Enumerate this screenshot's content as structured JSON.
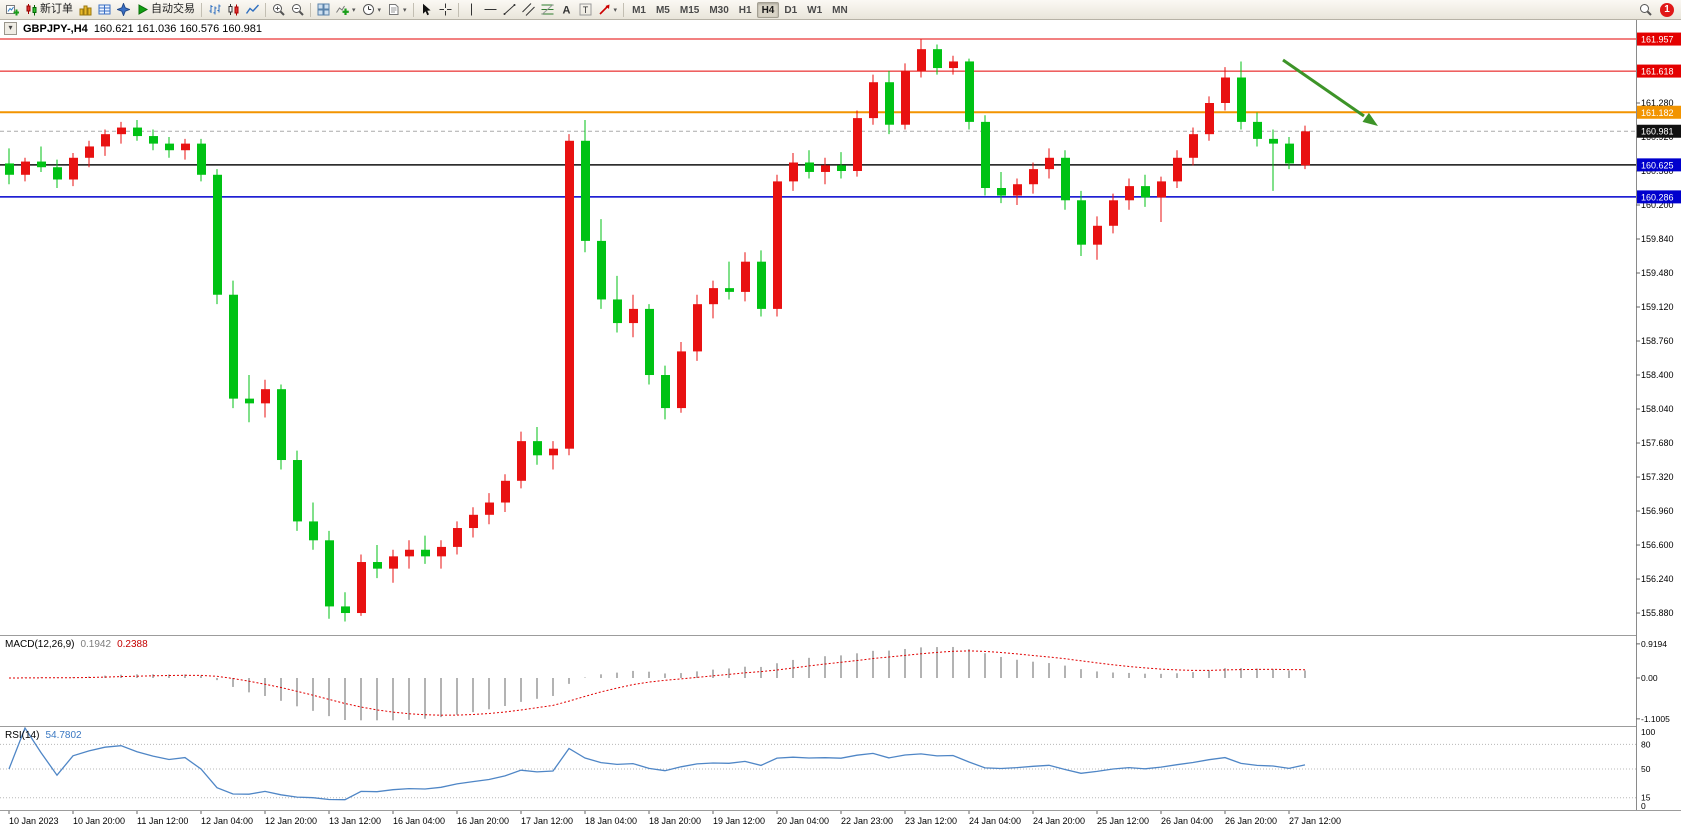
{
  "toolbar": {
    "groups": [
      {
        "name": "trade",
        "items": [
          {
            "name": "new-chart",
            "icon": "chart-plus"
          },
          {
            "name": "new-order",
            "icon": "order",
            "label": "新订单"
          },
          {
            "name": "market-watch",
            "icon": "market-watch"
          },
          {
            "name": "data-window",
            "icon": "data-window"
          },
          {
            "name": "navigator",
            "icon": "navigator"
          },
          {
            "name": "autotrading",
            "icon": "play",
            "label": "自动交易"
          }
        ]
      },
      {
        "name": "chart-types",
        "items": [
          {
            "name": "bar-chart",
            "icon": "bars"
          },
          {
            "name": "candle-chart",
            "icon": "candles"
          },
          {
            "name": "line-chart",
            "icon": "line"
          }
        ]
      },
      {
        "name": "zoom",
        "items": [
          {
            "name": "zoom-in",
            "icon": "zoom-in"
          },
          {
            "name": "zoom-out",
            "icon": "zoom-out"
          }
        ]
      },
      {
        "name": "windows",
        "items": [
          {
            "name": "tile-windows",
            "icon": "tile"
          },
          {
            "name": "indicators",
            "icon": "indicator-plus",
            "caret": true
          },
          {
            "name": "periods",
            "icon": "clock",
            "caret": true
          },
          {
            "name": "templates",
            "icon": "template",
            "caret": true
          }
        ]
      },
      {
        "name": "pointer",
        "items": [
          {
            "name": "cursor",
            "icon": "cursor"
          },
          {
            "name": "crosshair",
            "icon": "crosshair"
          }
        ]
      },
      {
        "name": "drawing",
        "items": [
          {
            "name": "vertical-line",
            "icon": "vline"
          },
          {
            "name": "horizontal-line",
            "icon": "hline"
          },
          {
            "name": "trendline",
            "icon": "tline"
          },
          {
            "name": "equidistant-channel",
            "icon": "channel"
          },
          {
            "name": "fibonacci",
            "icon": "fibo"
          },
          {
            "name": "text",
            "icon": "text-a"
          },
          {
            "name": "text-label",
            "icon": "text-t"
          },
          {
            "name": "arrows",
            "icon": "arrow-tool",
            "caret": true
          }
        ]
      }
    ],
    "timeframes": [
      "M1",
      "M5",
      "M15",
      "M30",
      "H1",
      "H4",
      "D1",
      "W1",
      "MN"
    ],
    "active_timeframe": "H4",
    "notification_count": "1"
  },
  "chart": {
    "symbol_period": "GBPJPY-,H4",
    "quote": "160.621 161.036 160.576 160.981",
    "type": "candlestick",
    "colors": {
      "bull": "#e81111",
      "bear": "#00c214",
      "macd_hist": "#b3b3b3",
      "macd_signal": "#e00000",
      "rsi_line": "#4f86c6",
      "arrow": "#3d9428"
    },
    "price_axis": {
      "ticks": [
        "161.280",
        "160.920",
        "160.560",
        "160.200",
        "159.840",
        "159.480",
        "159.120",
        "158.760",
        "158.400",
        "158.040",
        "157.680",
        "157.320",
        "156.960",
        "156.600",
        "156.240",
        "155.880"
      ]
    },
    "time_axis": {
      "bars_per_label": 4,
      "labels": [
        "10 Jan 2023",
        "10 Jan 20:00",
        "11 Jan 12:00",
        "12 Jan 04:00",
        "12 Jan 20:00",
        "13 Jan 12:00",
        "16 Jan 04:00",
        "16 Jan 20:00",
        "17 Jan 12:00",
        "18 Jan 04:00",
        "18 Jan 20:00",
        "19 Jan 12:00",
        "20 Jan 04:00",
        "22 Jan 23:00",
        "23 Jan 12:00",
        "24 Jan 04:00",
        "24 Jan 20:00",
        "25 Jan 12:00",
        "26 Jan 04:00",
        "26 Jan 20:00",
        "27 Jan 12:00"
      ]
    },
    "hlines": [
      {
        "price": 161.957,
        "label": "161.957",
        "color": "#e40000",
        "width": 1,
        "dash": "",
        "tag_bg": "#e40000"
      },
      {
        "price": 161.618,
        "label": "161.618",
        "color": "#e40000",
        "width": 1,
        "dash": "",
        "tag_bg": "#e40000"
      },
      {
        "price": 161.182,
        "label": "161.182",
        "color": "#f29400",
        "width": 2,
        "dash": "",
        "tag_bg": "#f29400"
      },
      {
        "price": 160.981,
        "label": "160.981",
        "color": "#aaaaaa",
        "width": 1,
        "dash": "4,3",
        "tag_bg": "#111111"
      },
      {
        "price": 160.625,
        "label": "160.625",
        "color": "#111111",
        "width": 1.5,
        "dash": "",
        "tag_bg": "#0000cd"
      },
      {
        "price": 160.286,
        "label": "160.286",
        "color": "#0000cd",
        "width": 1.5,
        "dash": "",
        "tag_bg": "#0000cd"
      }
    ],
    "candles": [
      [
        160.64,
        160.8,
        160.42,
        160.52
      ],
      [
        160.52,
        160.7,
        160.45,
        160.66
      ],
      [
        160.66,
        160.82,
        160.55,
        160.6
      ],
      [
        160.6,
        160.68,
        160.38,
        160.47
      ],
      [
        160.47,
        160.75,
        160.4,
        160.7
      ],
      [
        160.7,
        160.88,
        160.6,
        160.82
      ],
      [
        160.82,
        161.0,
        160.72,
        160.95
      ],
      [
        160.95,
        161.08,
        160.85,
        161.02
      ],
      [
        161.02,
        161.1,
        160.88,
        160.93
      ],
      [
        160.93,
        161.0,
        160.78,
        160.85
      ],
      [
        160.85,
        160.92,
        160.7,
        160.78
      ],
      [
        160.78,
        160.9,
        160.68,
        160.85
      ],
      [
        160.85,
        160.9,
        160.45,
        160.52
      ],
      [
        160.52,
        160.58,
        159.15,
        159.25
      ],
      [
        159.25,
        159.4,
        158.05,
        158.15
      ],
      [
        158.15,
        158.4,
        157.9,
        158.1
      ],
      [
        158.1,
        158.35,
        157.95,
        158.25
      ],
      [
        158.25,
        158.3,
        157.4,
        157.5
      ],
      [
        157.5,
        157.6,
        156.75,
        156.85
      ],
      [
        156.85,
        157.05,
        156.55,
        156.65
      ],
      [
        156.65,
        156.75,
        155.82,
        155.95
      ],
      [
        155.95,
        156.1,
        155.79,
        155.88
      ],
      [
        155.88,
        156.5,
        155.85,
        156.42
      ],
      [
        156.42,
        156.6,
        156.25,
        156.35
      ],
      [
        156.35,
        156.55,
        156.2,
        156.48
      ],
      [
        156.48,
        156.65,
        156.35,
        156.55
      ],
      [
        156.55,
        156.7,
        156.4,
        156.48
      ],
      [
        156.48,
        156.65,
        156.35,
        156.58
      ],
      [
        156.58,
        156.85,
        156.5,
        156.78
      ],
      [
        156.78,
        157.0,
        156.68,
        156.92
      ],
      [
        156.92,
        157.15,
        156.82,
        157.05
      ],
      [
        157.05,
        157.35,
        156.95,
        157.28
      ],
      [
        157.28,
        157.8,
        157.2,
        157.7
      ],
      [
        157.7,
        157.85,
        157.45,
        157.55
      ],
      [
        157.55,
        157.7,
        157.4,
        157.62
      ],
      [
        157.62,
        160.95,
        157.55,
        160.88
      ],
      [
        160.88,
        161.1,
        159.7,
        159.82
      ],
      [
        159.82,
        160.05,
        159.1,
        159.2
      ],
      [
        159.2,
        159.45,
        158.85,
        158.95
      ],
      [
        158.95,
        159.25,
        158.8,
        159.1
      ],
      [
        159.1,
        159.15,
        158.3,
        158.4
      ],
      [
        158.4,
        158.5,
        157.93,
        158.05
      ],
      [
        158.05,
        158.75,
        158.0,
        158.65
      ],
      [
        158.65,
        159.25,
        158.55,
        159.15
      ],
      [
        159.15,
        159.4,
        159.0,
        159.32
      ],
      [
        159.32,
        159.6,
        159.2,
        159.28
      ],
      [
        159.28,
        159.7,
        159.18,
        159.6
      ],
      [
        159.6,
        159.72,
        159.02,
        159.1
      ],
      [
        159.1,
        160.52,
        159.02,
        160.45
      ],
      [
        160.45,
        160.75,
        160.35,
        160.65
      ],
      [
        160.65,
        160.78,
        160.48,
        160.55
      ],
      [
        160.55,
        160.7,
        160.42,
        160.62
      ],
      [
        160.62,
        160.76,
        160.48,
        160.56
      ],
      [
        160.56,
        161.2,
        160.5,
        161.12
      ],
      [
        161.12,
        161.58,
        161.05,
        161.5
      ],
      [
        161.5,
        161.62,
        160.95,
        161.05
      ],
      [
        161.05,
        161.7,
        161.0,
        161.62
      ],
      [
        161.62,
        161.96,
        161.55,
        161.85
      ],
      [
        161.85,
        161.9,
        161.58,
        161.65
      ],
      [
        161.65,
        161.78,
        161.58,
        161.72
      ],
      [
        161.72,
        161.75,
        161.0,
        161.08
      ],
      [
        161.08,
        161.15,
        160.3,
        160.38
      ],
      [
        160.38,
        160.55,
        160.22,
        160.3
      ],
      [
        160.3,
        160.48,
        160.2,
        160.42
      ],
      [
        160.42,
        160.65,
        160.32,
        160.58
      ],
      [
        160.58,
        160.8,
        160.48,
        160.7
      ],
      [
        160.7,
        160.78,
        160.15,
        160.25
      ],
      [
        160.25,
        160.35,
        159.66,
        159.78
      ],
      [
        159.78,
        160.08,
        159.62,
        159.98
      ],
      [
        159.98,
        160.32,
        159.9,
        160.25
      ],
      [
        160.25,
        160.48,
        160.15,
        160.4
      ],
      [
        160.4,
        160.52,
        160.18,
        160.28
      ],
      [
        160.28,
        160.5,
        160.02,
        160.45
      ],
      [
        160.45,
        160.78,
        160.38,
        160.7
      ],
      [
        160.7,
        161.02,
        160.62,
        160.95
      ],
      [
        160.95,
        161.35,
        160.88,
        161.28
      ],
      [
        161.28,
        161.66,
        161.2,
        161.55
      ],
      [
        161.55,
        161.72,
        161.0,
        161.08
      ],
      [
        161.08,
        161.18,
        160.82,
        160.9
      ],
      [
        160.9,
        161.0,
        160.35,
        160.85
      ],
      [
        160.85,
        160.92,
        160.58,
        160.64
      ],
      [
        160.62,
        161.04,
        160.58,
        160.98
      ]
    ],
    "arrow": {
      "color": "#3d9428"
    }
  },
  "macd": {
    "title": "MACD(12,26,9)",
    "value_main": "0.1942",
    "value_signal": "0.2388",
    "fast": 12,
    "slow": 26,
    "signal": 9,
    "axis_labels": [
      {
        "text": "0.9194",
        "value": 0.9194
      },
      {
        "text": "0.00",
        "value": 0
      },
      {
        "text": "-1.1005",
        "value": -1.1005
      }
    ]
  },
  "rsi": {
    "title": "RSI(14)",
    "value": "54.7802",
    "period": 14,
    "levels": [
      80,
      50,
      15
    ],
    "axis_labels": [
      {
        "text": "100",
        "value": 100
      },
      {
        "text": "80",
        "value": 80
      },
      {
        "text": "50",
        "value": 50
      },
      {
        "text": "15",
        "value": 15
      },
      {
        "text": "0",
        "value": 0
      }
    ]
  }
}
